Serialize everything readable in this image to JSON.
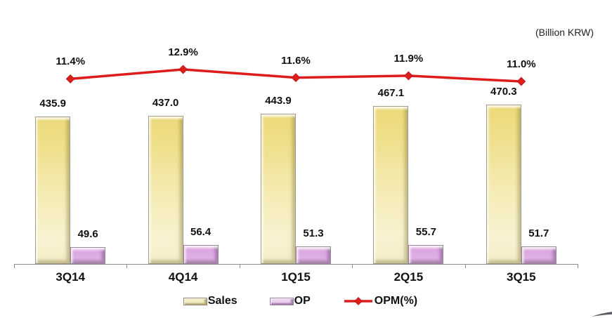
{
  "unit_label": "(Billion KRW)",
  "chart_data": {
    "type": "combo (bar + line)",
    "categories": [
      "3Q14",
      "4Q14",
      "1Q15",
      "2Q15",
      "3Q15"
    ],
    "series": [
      {
        "name": "Sales",
        "type": "bar",
        "axis": "left",
        "values": [
          435.9,
          437.0,
          443.9,
          467.1,
          470.3
        ],
        "color": "#f0e295",
        "label_format": "one-decimal"
      },
      {
        "name": "OP",
        "type": "bar",
        "axis": "left",
        "values": [
          49.6,
          56.4,
          51.3,
          55.7,
          51.7
        ],
        "color": "#dcaae2",
        "label_format": "one-decimal"
      },
      {
        "name": "OPM(%)",
        "type": "line",
        "axis": "right",
        "values": [
          11.4,
          12.9,
          11.6,
          11.9,
          11.0
        ],
        "color": "#dd1c1c",
        "marker": "diamond",
        "label_format": "one-decimal-percent"
      }
    ],
    "title": "",
    "xlabel": "",
    "ylabel": "",
    "unit": "Billion KRW",
    "grid": false,
    "value_labels": true,
    "legend_position": "bottom",
    "legend": [
      "Sales",
      "OP",
      "OPM(%)"
    ]
  },
  "colors": {
    "sales_bar": "#f0e295",
    "op_bar": "#dcaae2",
    "opm_line": "#dd1c1c",
    "axis": "#8c8c8c",
    "text": "#111111"
  },
  "decorations": {
    "bottom_right_fragment": "partial dark ellipse edge (cropped shape)"
  }
}
